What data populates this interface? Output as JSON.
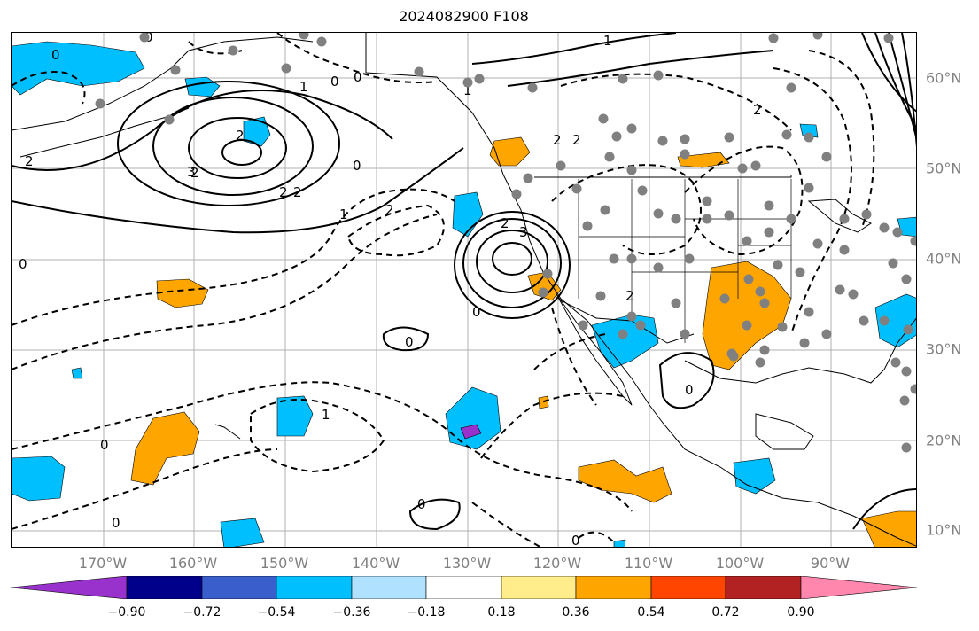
{
  "title": "2024082900 F108",
  "lat_labels": [
    "60°N",
    "50°N",
    "40°N",
    "30°N",
    "20°N",
    "10°N"
  ],
  "lon_labels": [
    "170°W",
    "160°W",
    "150°W",
    "140°W",
    "130°W",
    "120°W",
    "110°W",
    "100°W",
    "90°W"
  ],
  "colorbar": {
    "ticks": [
      "−0.90",
      "−0.72",
      "−0.54",
      "−0.36",
      "−0.18",
      "0.18",
      "0.36",
      "0.54",
      "0.72",
      "0.90"
    ],
    "colors": [
      "#9932cc",
      "#00008b",
      "#3a5fcd",
      "#00bfff",
      "#b0e2ff",
      "#ffffff",
      "#ffec8b",
      "#ffa500",
      "#ff4500",
      "#b22222",
      "#ff86ad"
    ]
  },
  "contour_labels": [
    "0",
    "0",
    "1",
    "0",
    "1",
    "1",
    "2",
    "2",
    "2",
    "2",
    "3",
    "2",
    "2",
    "2",
    "0",
    "2",
    "1",
    "2",
    "2",
    "3",
    "0",
    "0",
    "0",
    "0",
    "1",
    "0",
    "0",
    "0",
    "0",
    "2",
    "0"
  ],
  "palette": {
    "frame": "#000000",
    "axis_label": "#808080",
    "grid": "#b0b0b0",
    "dot": "#808080",
    "blue": "#00bfff",
    "orange": "#ffa500"
  }
}
